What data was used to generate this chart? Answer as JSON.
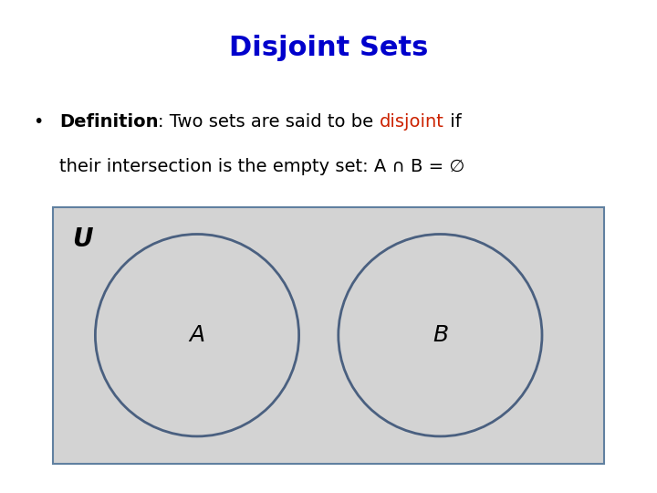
{
  "title": "Disjoint Sets",
  "title_color": "#0000CC",
  "title_fontsize": 22,
  "rect_bg": "#d3d3d3",
  "rect_border": "#6080a0",
  "circle_fill": "#d3d3d3",
  "circle_edge": "#4a6080",
  "circle_lw": 2.0,
  "label_A": "A",
  "label_B": "B",
  "label_U": "U",
  "bg_color": "#ffffff",
  "text_fontsize": 14,
  "bullet_color": "#000000",
  "disjoint_color": "#cc2200"
}
